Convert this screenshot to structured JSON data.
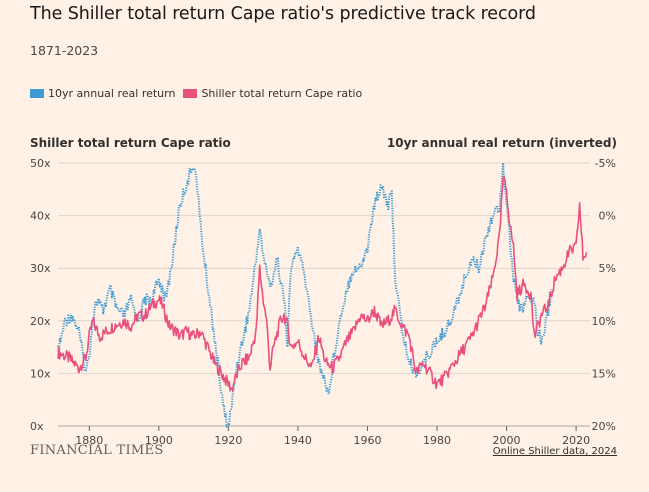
{
  "header": {
    "title": "The Shiller total return Cape ratio's predictive track record",
    "subtitle": "1871-2023"
  },
  "legend": [
    {
      "label": "10yr annual real return",
      "color": "#3d9bd6"
    },
    {
      "label": "Shiller total return Cape ratio",
      "color": "#e8507e"
    }
  ],
  "footer": {
    "brand": "FINANCIAL TIMES",
    "source": "Online Shiller data, 2024"
  },
  "chart_data": {
    "type": "line",
    "left_axis": {
      "title": "Shiller total return Cape ratio",
      "ylim": [
        0,
        50
      ],
      "ticks": [
        0,
        10,
        20,
        30,
        40,
        50
      ],
      "tick_labels": [
        "0x",
        "10x",
        "20x",
        "30x",
        "40x",
        "50x"
      ]
    },
    "right_axis": {
      "title": "10yr annual real return (inverted)",
      "ylim": [
        -5,
        20
      ],
      "inverted": true,
      "ticks": [
        -5,
        0,
        5,
        10,
        15,
        20
      ],
      "tick_labels": [
        "-5%",
        "0%",
        "5%",
        "10%",
        "15%",
        "20%"
      ]
    },
    "x_axis": {
      "xlim": [
        1871,
        2024
      ],
      "ticks": [
        1880,
        1900,
        1920,
        1940,
        1960,
        1980,
        2000,
        2020
      ],
      "tick_labels": [
        "1880",
        "1900",
        "1920",
        "1940",
        "1960",
        "1980",
        "2000",
        "2020"
      ]
    },
    "grid": true,
    "series": [
      {
        "name": "10yr annual real return",
        "axis": "right",
        "style": "dotted",
        "color": "#3d9bd6",
        "x": [
          1871,
          1873,
          1875,
          1877,
          1879,
          1880,
          1881,
          1882,
          1884,
          1886,
          1888,
          1890,
          1892,
          1894,
          1896,
          1898,
          1900,
          1902,
          1904,
          1906,
          1908,
          1910,
          1911,
          1912,
          1913,
          1915,
          1917,
          1918,
          1919,
          1920,
          1921,
          1922,
          1924,
          1926,
          1928,
          1929,
          1930,
          1931,
          1932,
          1934,
          1936,
          1937,
          1938,
          1940,
          1942,
          1944,
          1946,
          1948,
          1949,
          1950,
          1952,
          1954,
          1956,
          1958,
          1960,
          1962,
          1964,
          1966,
          1967,
          1968,
          1970,
          1972,
          1974,
          1976,
          1978,
          1980,
          1982,
          1984,
          1986,
          1988,
          1990,
          1992,
          1994,
          1996,
          1998,
          1999,
          2000,
          2002,
          2004,
          2006,
          2008,
          2009,
          2010,
          2012,
          2013
        ],
        "y": [
          13,
          10,
          9.5,
          11,
          15,
          13,
          10,
          8,
          9,
          7,
          9,
          9.5,
          8,
          10,
          8,
          8,
          6,
          8,
          4,
          -1,
          -3,
          -5,
          -3,
          1,
          4,
          9,
          14,
          17,
          19,
          20,
          18,
          15,
          12,
          9,
          4,
          1,
          4,
          5,
          7,
          4,
          8,
          12,
          5,
          3,
          6,
          10,
          14,
          16,
          17,
          14,
          10,
          7,
          5,
          5,
          3,
          -1,
          -3,
          -1,
          -2,
          6,
          11,
          14,
          15,
          14,
          13,
          12,
          11,
          10,
          8,
          6,
          4,
          5,
          2,
          0,
          -1,
          -5,
          -1,
          6,
          9,
          8,
          8,
          11,
          12,
          9,
          7
        ]
      },
      {
        "name": "Shiller total return Cape ratio",
        "axis": "left",
        "style": "solid",
        "color": "#e8507e",
        "x": [
          1871,
          1874,
          1877,
          1879,
          1880,
          1881,
          1883,
          1885,
          1887,
          1890,
          1892,
          1894,
          1896,
          1898,
          1900,
          1901,
          1903,
          1905,
          1906,
          1908,
          1910,
          1912,
          1914,
          1916,
          1918,
          1919,
          1920,
          1921,
          1922,
          1924,
          1926,
          1928,
          1929,
          1930,
          1931,
          1932,
          1933,
          1935,
          1936,
          1937,
          1938,
          1940,
          1942,
          1944,
          1946,
          1948,
          1950,
          1952,
          1954,
          1956,
          1958,
          1960,
          1962,
          1964,
          1966,
          1968,
          1970,
          1972,
          1974,
          1976,
          1978,
          1980,
          1982,
          1984,
          1986,
          1988,
          1990,
          1992,
          1994,
          1996,
          1998,
          1999,
          2000,
          2001,
          2002,
          2003,
          2005,
          2007,
          2008,
          2009,
          2010,
          2012,
          2014,
          2016,
          2018,
          2020,
          2021,
          2022,
          2023
        ],
        "y": [
          14,
          13,
          11,
          13,
          17,
          20,
          17,
          18,
          19,
          20,
          19,
          21,
          21,
          23,
          24,
          23,
          19,
          18,
          17,
          18,
          17,
          18,
          15,
          12,
          10,
          9,
          8,
          7,
          9,
          12,
          13,
          18,
          30,
          24,
          20,
          11,
          15,
          20,
          21,
          19,
          15,
          16,
          13,
          11,
          17,
          12,
          11,
          13,
          16,
          18,
          21,
          20,
          22,
          19,
          20,
          22,
          19,
          17,
          10,
          12,
          10,
          8,
          9,
          11,
          13,
          15,
          17,
          20,
          23,
          28,
          36,
          47,
          45,
          38,
          34,
          25,
          27,
          25,
          17,
          19,
          21,
          23,
          28,
          30,
          33,
          34,
          42,
          32,
          33
        ]
      }
    ]
  }
}
